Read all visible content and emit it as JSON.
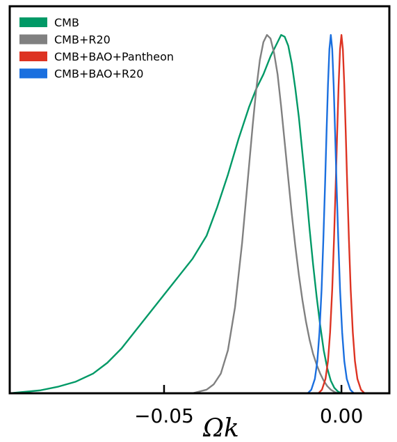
{
  "chart_data": {
    "type": "line",
    "title": "",
    "xlabel": "Ωk",
    "ylabel": "",
    "xlim": [
      -0.0935,
      0.0135
    ],
    "ylim": [
      0,
      1.08
    ],
    "xticks": [
      {
        "value": -0.05,
        "label": "−0.05"
      },
      {
        "value": 0.0,
        "label": "0.00"
      }
    ],
    "yticks": [],
    "grid": false,
    "legend": {
      "position": "top-left"
    },
    "series": [
      {
        "name": "CMB",
        "color": "#009966",
        "x": [
          -0.0935,
          -0.085,
          -0.08,
          -0.075,
          -0.07,
          -0.066,
          -0.062,
          -0.058,
          -0.054,
          -0.05,
          -0.046,
          -0.042,
          -0.038,
          -0.035,
          -0.032,
          -0.029,
          -0.026,
          -0.024,
          -0.022,
          -0.02,
          -0.018,
          -0.017,
          -0.016,
          -0.015,
          -0.014,
          -0.013,
          -0.012,
          -0.011,
          -0.01,
          -0.009,
          -0.008,
          -0.007,
          -0.006,
          -0.005,
          -0.004,
          -0.003,
          -0.002,
          -0.001,
          0.0
        ],
        "y": [
          0.0,
          0.008,
          0.018,
          0.032,
          0.055,
          0.085,
          0.125,
          0.175,
          0.225,
          0.275,
          0.325,
          0.375,
          0.44,
          0.52,
          0.61,
          0.71,
          0.8,
          0.85,
          0.89,
          0.94,
          0.98,
          1.0,
          0.995,
          0.97,
          0.92,
          0.85,
          0.77,
          0.67,
          0.57,
          0.46,
          0.36,
          0.27,
          0.19,
          0.12,
          0.07,
          0.035,
          0.015,
          0.005,
          0.0
        ]
      },
      {
        "name": "CMB+R20",
        "color": "#808080",
        "x": [
          -0.042,
          -0.038,
          -0.036,
          -0.034,
          -0.032,
          -0.03,
          -0.028,
          -0.026,
          -0.025,
          -0.024,
          -0.023,
          -0.022,
          -0.021,
          -0.02,
          -0.019,
          -0.018,
          -0.017,
          -0.016,
          -0.015,
          -0.014,
          -0.013,
          -0.012,
          -0.011,
          -0.01,
          -0.009,
          -0.008,
          -0.007,
          -0.006,
          -0.005,
          -0.004,
          -0.003,
          -0.002,
          -0.001
        ],
        "y": [
          0.0,
          0.01,
          0.025,
          0.055,
          0.12,
          0.24,
          0.42,
          0.64,
          0.75,
          0.85,
          0.93,
          0.98,
          1.0,
          0.99,
          0.95,
          0.89,
          0.8,
          0.7,
          0.6,
          0.5,
          0.41,
          0.33,
          0.26,
          0.2,
          0.15,
          0.11,
          0.08,
          0.055,
          0.035,
          0.02,
          0.01,
          0.004,
          0.0
        ]
      },
      {
        "name": "CMB+BAO+Pantheon",
        "color": "#dd3322",
        "x": [
          -0.0065,
          -0.0055,
          -0.0045,
          -0.0038,
          -0.0032,
          -0.0026,
          -0.0021,
          -0.0016,
          -0.0012,
          -0.0008,
          -0.0004,
          0.0,
          0.0004,
          0.0008,
          0.0012,
          0.0016,
          0.0021,
          0.0026,
          0.0032,
          0.0038,
          0.0045,
          0.0055,
          0.0065
        ],
        "y": [
          0.0,
          0.01,
          0.04,
          0.09,
          0.17,
          0.29,
          0.43,
          0.59,
          0.73,
          0.86,
          0.96,
          1.0,
          0.96,
          0.86,
          0.73,
          0.59,
          0.43,
          0.29,
          0.17,
          0.09,
          0.04,
          0.01,
          0.0
        ]
      },
      {
        "name": "CMB+BAO+R20",
        "color": "#1a6fdf",
        "x": [
          -0.0095,
          -0.0085,
          -0.0075,
          -0.0068,
          -0.0062,
          -0.0056,
          -0.0051,
          -0.0046,
          -0.0042,
          -0.0038,
          -0.0034,
          -0.003,
          -0.0026,
          -0.0022,
          -0.0018,
          -0.0014,
          -0.0009,
          -0.0004,
          0.0002,
          0.0008,
          0.0015,
          0.0025,
          0.0035
        ],
        "y": [
          0.0,
          0.01,
          0.04,
          0.09,
          0.17,
          0.29,
          0.43,
          0.59,
          0.73,
          0.86,
          0.96,
          1.0,
          0.96,
          0.86,
          0.73,
          0.59,
          0.43,
          0.29,
          0.17,
          0.09,
          0.04,
          0.01,
          0.0
        ]
      }
    ]
  }
}
